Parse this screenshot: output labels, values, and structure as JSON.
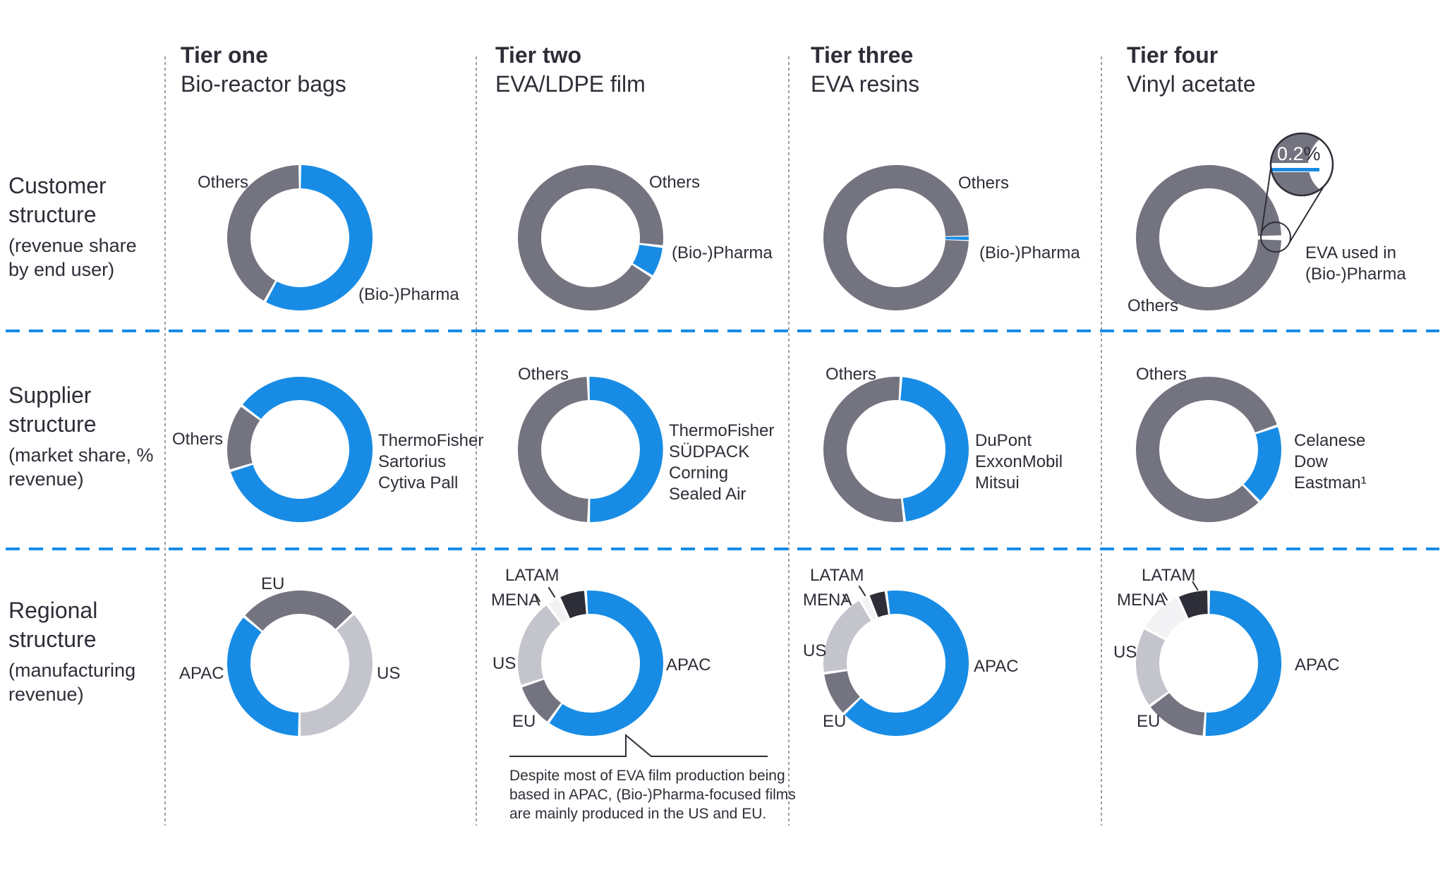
{
  "palette": {
    "blue": "#188CE5",
    "gray": "#747480",
    "light_gray": "#C4C4CD",
    "pale_gray": "#F2F2F5",
    "black": "#2E2E38",
    "line_dark": "#2E2E38",
    "dashed_separator_blue": "#188CE5",
    "dotted_separator_gray": "#9c9ca6"
  },
  "columns": [
    {
      "id": "tier1",
      "title": "Tier one",
      "subtitle": "Bio-reactor bags"
    },
    {
      "id": "tier2",
      "title": "Tier two",
      "subtitle": "EVA/LDPE film"
    },
    {
      "id": "tier3",
      "title": "Tier three",
      "subtitle": "EVA resins"
    },
    {
      "id": "tier4",
      "title": "Tier four",
      "subtitle": "Vinyl acetate"
    }
  ],
  "rows": [
    {
      "id": "customer",
      "title": "Customer structure",
      "subtitle": "(revenue share by end user)"
    },
    {
      "id": "supplier",
      "title": "Supplier structure",
      "subtitle": "(market share, % revenue)"
    },
    {
      "id": "regional",
      "title": "Regional structure",
      "subtitle": "(manufacturing revenue)"
    }
  ],
  "chart_data": [
    {
      "id": "customer-tier1",
      "type": "pie",
      "row_id": "customer",
      "column_id": "tier1",
      "start_angle": 0,
      "units": "% of revenue",
      "segments": [
        {
          "label": "(Bio-)Pharma",
          "value": 58,
          "color": "blue"
        },
        {
          "label": "Others",
          "value": 42,
          "color": "gray"
        }
      ]
    },
    {
      "id": "customer-tier2",
      "type": "pie",
      "row_id": "customer",
      "column_id": "tier2",
      "start_angle": 97,
      "units": "% of revenue",
      "segments": [
        {
          "label": "(Bio-)Pharma",
          "value": 7,
          "color": "blue"
        },
        {
          "label": "Others",
          "value": 93,
          "color": "gray"
        }
      ]
    },
    {
      "id": "customer-tier3",
      "type": "pie",
      "row_id": "customer",
      "column_id": "tier3",
      "start_angle": 88.6,
      "gap_deg": 0.8,
      "units": "% of revenue",
      "segments": [
        {
          "label": "(Bio-)Pharma",
          "value": 1,
          "color": "blue"
        },
        {
          "label": "Others",
          "value": 99,
          "color": "gray"
        }
      ]
    },
    {
      "id": "customer-tier4",
      "type": "pie",
      "row_id": "customer",
      "column_id": "tier4",
      "start_angle": 89.6,
      "gap_deg": 3.2,
      "units": "% of revenue",
      "segments": [
        {
          "label": "EVA used in (Bio-)Pharma",
          "value": 0.2,
          "color": "blue",
          "label_lines": [
            "EVA used in",
            "(Bio-)Pharma"
          ]
        },
        {
          "label": "Others",
          "value": 99.8,
          "color": "gray"
        }
      ],
      "magnifier": {
        "value": "0.2",
        "unit": "%"
      }
    },
    {
      "id": "supplier-tier1",
      "type": "pie",
      "row_id": "supplier",
      "column_id": "tier1",
      "start_angle": -53,
      "units": "% market share of revenue",
      "segments": [
        {
          "label": "ThermoFisher, Sartorius, Cytiva Pall",
          "value": 85,
          "color": "blue",
          "label_lines": [
            "ThermoFisher",
            "Sartorius",
            "Cytiva Pall"
          ]
        },
        {
          "label": "Others",
          "value": 15,
          "color": "gray"
        }
      ]
    },
    {
      "id": "supplier-tier2",
      "type": "pie",
      "row_id": "supplier",
      "column_id": "tier2",
      "start_angle": -2,
      "units": "% market share of revenue",
      "segments": [
        {
          "label": "ThermoFisher, SÜDPACK, Corning, Sealed Air",
          "value": 51,
          "color": "blue",
          "label_lines": [
            "ThermoFisher",
            "SÜDPACK",
            "Corning",
            "Sealed Air"
          ]
        },
        {
          "label": "Others",
          "value": 49,
          "color": "gray"
        }
      ]
    },
    {
      "id": "supplier-tier3",
      "type": "pie",
      "row_id": "supplier",
      "column_id": "tier3",
      "start_angle": 4,
      "units": "% market share of revenue",
      "segments": [
        {
          "label": "DuPont, ExxonMobil, Mitsui",
          "value": 47,
          "color": "blue",
          "label_lines": [
            "DuPont",
            "ExxonMobil",
            "Mitsui"
          ]
        },
        {
          "label": "Others",
          "value": 53,
          "color": "gray"
        }
      ]
    },
    {
      "id": "supplier-tier4",
      "type": "pie",
      "row_id": "supplier",
      "column_id": "tier4",
      "start_angle": 71,
      "units": "% market share of revenue",
      "segments": [
        {
          "label": "Celanese, Dow, Eastman¹",
          "value": 18,
          "color": "blue",
          "label_lines": [
            "Celanese",
            "Dow",
            "Eastman¹"
          ]
        },
        {
          "label": "Others",
          "value": 82,
          "color": "gray"
        }
      ]
    },
    {
      "id": "regional-tier1",
      "type": "pie",
      "row_id": "regional",
      "column_id": "tier1",
      "start_angle": -50,
      "units": "% manufacturing revenue",
      "segments": [
        {
          "label": "EU",
          "value": 27,
          "color": "gray"
        },
        {
          "label": "US",
          "value": 37,
          "color": "light_gray"
        },
        {
          "label": "APAC",
          "value": 36,
          "color": "blue"
        }
      ]
    },
    {
      "id": "regional-tier2",
      "type": "pie",
      "row_id": "regional",
      "column_id": "tier2",
      "start_angle": -4,
      "units": "% manufacturing revenue",
      "segments": [
        {
          "label": "APAC",
          "value": 61,
          "color": "blue"
        },
        {
          "label": "EU",
          "value": 10,
          "color": "gray"
        },
        {
          "label": "US",
          "value": 20,
          "color": "light_gray"
        },
        {
          "label": "MENA",
          "value": 3,
          "color": "pale_gray"
        },
        {
          "label": "LATAM",
          "value": 6,
          "color": "black"
        }
      ],
      "note": "Despite most of EVA film production being based in APAC, (Bio-)Pharma-focused films are mainly produced in the US and EU."
    },
    {
      "id": "regional-tier3",
      "type": "pie",
      "row_id": "regional",
      "column_id": "tier3",
      "start_angle": -8,
      "units": "% manufacturing revenue",
      "segments": [
        {
          "label": "APAC",
          "value": 65,
          "color": "blue"
        },
        {
          "label": "EU",
          "value": 10,
          "color": "gray"
        },
        {
          "label": "US",
          "value": 19,
          "color": "light_gray"
        },
        {
          "label": "MENA",
          "value": 2,
          "color": "pale_gray"
        },
        {
          "label": "LATAM",
          "value": 4,
          "color": "black"
        }
      ]
    },
    {
      "id": "regional-tier4",
      "type": "pie",
      "row_id": "regional",
      "column_id": "tier4",
      "start_angle": 0,
      "units": "% manufacturing revenue",
      "segments": [
        {
          "label": "APAC",
          "value": 51,
          "color": "blue"
        },
        {
          "label": "EU",
          "value": 14,
          "color": "gray"
        },
        {
          "label": "US",
          "value": 18,
          "color": "light_gray"
        },
        {
          "label": "MENA",
          "value": 10,
          "color": "pale_gray"
        },
        {
          "label": "LATAM",
          "value": 7,
          "color": "black"
        }
      ]
    }
  ]
}
